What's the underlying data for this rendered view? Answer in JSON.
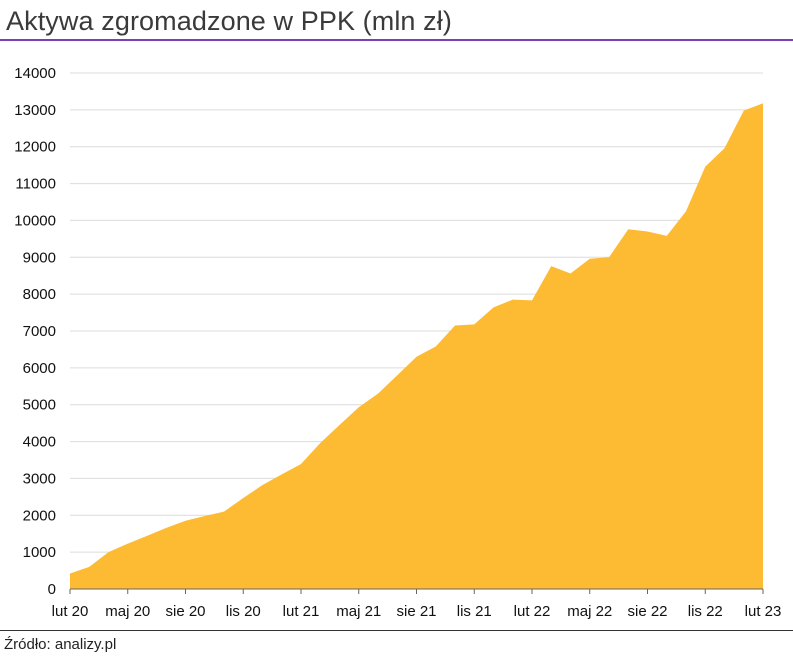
{
  "title": "Aktywa zgromadzone w PPK (mln zł)",
  "source": "Źródło: analizy.pl",
  "colors": {
    "area": "#fdbb33",
    "title_rule": "#7b3fb5",
    "grid": "#dcdcdc"
  },
  "chart_data": {
    "type": "area",
    "title": "Aktywa zgromadzone w PPK (mln zł)",
    "xlabel": "",
    "ylabel": "",
    "ylim": [
      0,
      14000
    ],
    "yticks": [
      0,
      1000,
      2000,
      3000,
      4000,
      5000,
      6000,
      7000,
      8000,
      9000,
      10000,
      11000,
      12000,
      13000,
      14000
    ],
    "xtick_labels": [
      "lut 20",
      "maj 20",
      "sie 20",
      "lis 20",
      "lut 21",
      "maj 21",
      "sie 21",
      "lis 21",
      "lut 22",
      "maj 22",
      "sie 22",
      "lis 22",
      "lut 23"
    ],
    "grid": "horizontal",
    "legend": "none",
    "x": [
      "2020-02",
      "2020-03",
      "2020-04",
      "2020-05",
      "2020-06",
      "2020-07",
      "2020-08",
      "2020-09",
      "2020-10",
      "2020-11",
      "2020-12",
      "2021-01",
      "2021-02",
      "2021-03",
      "2021-04",
      "2021-05",
      "2021-06",
      "2021-07",
      "2021-08",
      "2021-09",
      "2021-10",
      "2021-11",
      "2021-12",
      "2022-01",
      "2022-02",
      "2022-03",
      "2022-04",
      "2022-05",
      "2022-06",
      "2022-07",
      "2022-08",
      "2022-09",
      "2022-10",
      "2022-11",
      "2022-12",
      "2023-01",
      "2023-02"
    ],
    "values": [
      420,
      600,
      1000,
      1230,
      1440,
      1660,
      1850,
      1980,
      2100,
      2470,
      2820,
      3110,
      3390,
      3960,
      4450,
      4930,
      5300,
      5800,
      6300,
      6580,
      7150,
      7180,
      7640,
      7850,
      7830,
      8760,
      8560,
      8960,
      9000,
      9760,
      9700,
      9580,
      10250,
      11460,
      11960,
      12980,
      13180
    ]
  }
}
